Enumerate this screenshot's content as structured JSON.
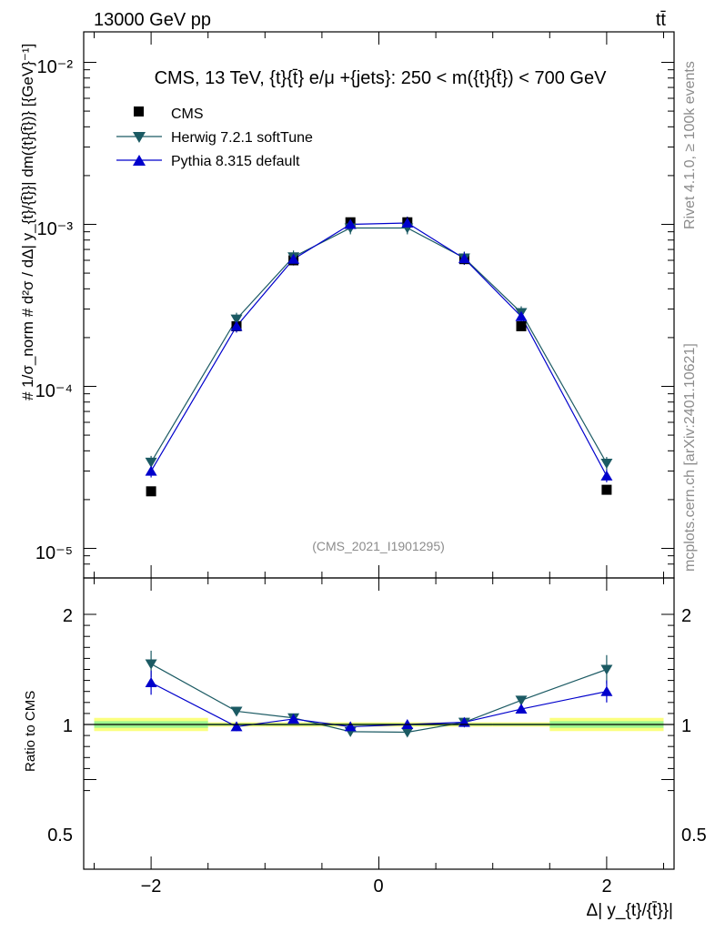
{
  "header": {
    "left": "13000 GeV pp",
    "right": "tt̄"
  },
  "side": {
    "rivet": "Rivet 4.1.0, ≥ 100k events",
    "mcplots": "mcplots.cern.ch [arXiv:2401.10621]"
  },
  "chart_data": {
    "type": "scatter",
    "title": "CMS, 13 TeV, {t}{t̄} e/μ +{jets}: 250 < m({t}{t̄}) < 700 GeV",
    "analysis_tag": "(CMS_2021_I1901295)",
    "xlabel": "Δ| y_{t}/{t̄}}|",
    "ylabel": "# 1/σ_norm # d²σ / dΔ| y_{t}/{t̄}}| dm({t}{t̄})} [{GeV}⁻¹]",
    "yscale": "log",
    "ylim": [
      7.8e-06,
      0.016
    ],
    "xlim": [
      -2.5,
      2.6
    ],
    "x_ticks": [
      "−2",
      "0",
      "2"
    ],
    "y_ticks": [
      "10⁻⁵",
      "10⁻⁴",
      "10⁻³",
      "10⁻²"
    ],
    "x": [
      -2.0,
      -1.25,
      -0.75,
      -0.25,
      0.25,
      0.75,
      1.25,
      2.0
    ],
    "x_edges": [
      -2.5,
      -1.5,
      -1.0,
      -0.5,
      0.0,
      0.5,
      1.0,
      1.5,
      2.5
    ],
    "series": [
      {
        "name": "CMS",
        "color": "#000000",
        "marker": "square",
        "values": [
          2.25e-05,
          0.000235,
          0.0006,
          0.00103,
          0.00103,
          0.00061,
          0.000235,
          2.3e-05
        ]
      },
      {
        "name": "Herwig 7.2.1 softTune",
        "color": "#1b5a63",
        "marker": "triangle-down",
        "values": [
          3.4e-05,
          0.00026,
          0.00063,
          0.00095,
          0.00095,
          0.00062,
          0.000285,
          3.35e-05
        ]
      },
      {
        "name": "Pythia 8.315 default",
        "color": "#0000cc",
        "marker": "triangle-up",
        "values": [
          3e-05,
          0.000235,
          0.00061,
          0.001,
          0.00102,
          0.000615,
          0.00027,
          2.8e-05
        ]
      }
    ],
    "ratio": {
      "ylabel": "Ratio to CMS",
      "ylim": [
        0.39,
        2.3
      ],
      "y_ticks": [
        "0.5",
        "1",
        "2"
      ],
      "y_tick_values": [
        0.5,
        1,
        2
      ],
      "band_inner": [
        0.03,
        0.01,
        0.01,
        0.01,
        0.01,
        0.01,
        0.01,
        0.03
      ],
      "band_outer": [
        0.06,
        0.02,
        0.02,
        0.02,
        0.02,
        0.02,
        0.02,
        0.06
      ],
      "series": [
        {
          "name": "Herwig 7.2.1 softTune",
          "color": "#1b5a63",
          "marker": "triangle-down",
          "values": [
            1.55,
            1.12,
            1.06,
            0.935,
            0.93,
            1.02,
            1.22,
            1.5
          ],
          "errors": [
            0.12,
            0.04,
            0.02,
            0.01,
            0.01,
            0.02,
            0.04,
            0.13
          ]
        },
        {
          "name": "Pythia 8.315 default",
          "color": "#0000cc",
          "marker": "triangle-up",
          "values": [
            1.38,
            0.98,
            1.05,
            0.98,
            1.0,
            1.02,
            1.14,
            1.3
          ],
          "errors": [
            0.11,
            0.04,
            0.02,
            0.01,
            0.01,
            0.02,
            0.04,
            0.1
          ]
        }
      ]
    }
  }
}
